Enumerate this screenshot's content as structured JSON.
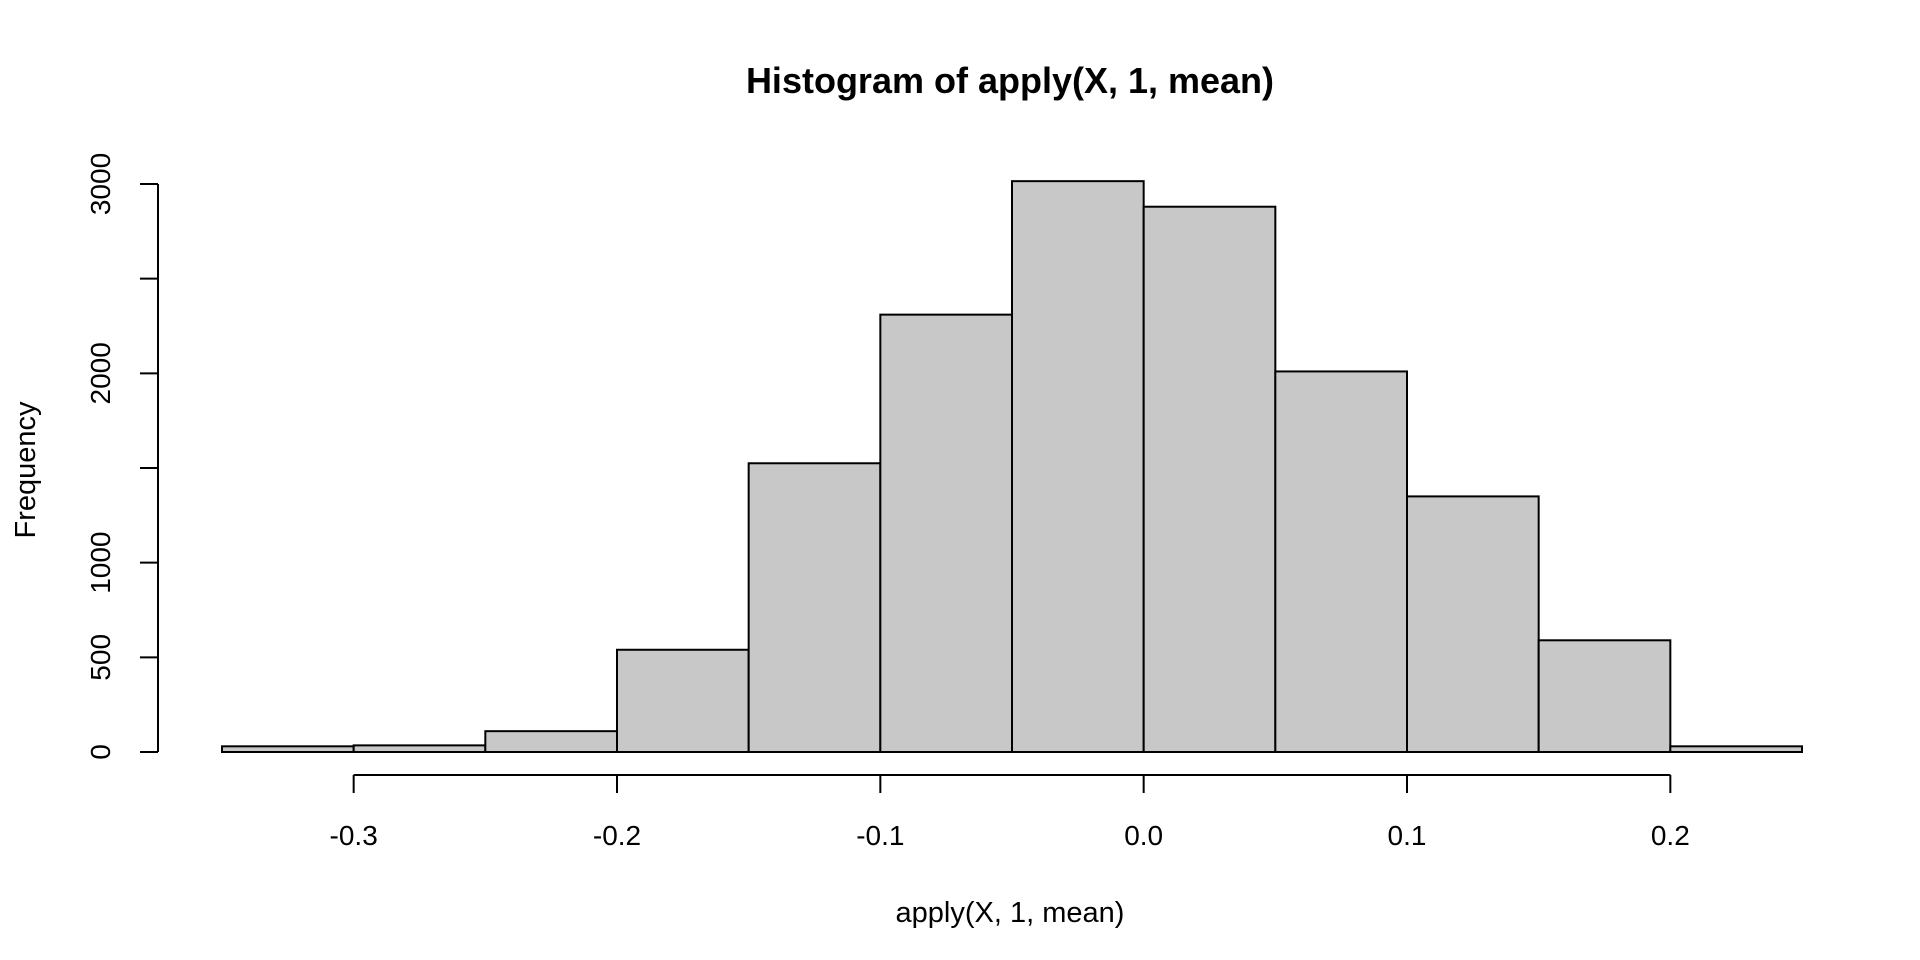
{
  "chart_data": {
    "type": "bar",
    "title": "Histogram of apply(X, 1, mean)",
    "xlabel": "apply(X, 1, mean)",
    "ylabel": "Frequency",
    "bin_edges": [
      -0.35,
      -0.3,
      -0.25,
      -0.2,
      -0.15,
      -0.1,
      -0.05,
      0.0,
      0.05,
      0.1,
      0.15,
      0.2,
      0.25
    ],
    "values": [
      30,
      35,
      110,
      540,
      1525,
      2310,
      3015,
      2880,
      2010,
      1350,
      590,
      30
    ],
    "xlim": [
      -0.35,
      0.25
    ],
    "ylim": [
      0,
      3000
    ],
    "x_ticks": [
      -0.3,
      -0.2,
      -0.1,
      0.0,
      0.1,
      0.2
    ],
    "x_tick_labels": [
      "-0.3",
      "-0.2",
      "-0.1",
      "0.0",
      "0.1",
      "0.2"
    ],
    "y_ticks": [
      0,
      500,
      1000,
      1500,
      2000,
      2500,
      3000
    ],
    "y_tick_labels": [
      "0",
      "500",
      "1000",
      "",
      "2000",
      "",
      "3000"
    ],
    "grid": false,
    "colors": {
      "bar_fill": "#c8c8c8",
      "bar_stroke": "#000000",
      "axis": "#000000"
    }
  }
}
